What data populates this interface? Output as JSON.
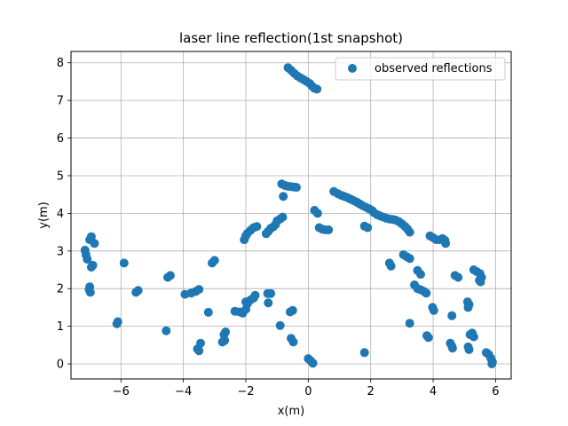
{
  "chart_data": {
    "type": "scatter",
    "title": "laser line reflection(1st snapshot)",
    "xlabel": "x(m)",
    "ylabel": "y(m)",
    "xlim": [
      -7.6,
      6.5
    ],
    "ylim": [
      -0.4,
      8.3
    ],
    "xticks": [
      -6,
      -4,
      -2,
      0,
      2,
      4,
      6
    ],
    "yticks": [
      0,
      1,
      2,
      3,
      4,
      5,
      6,
      7,
      8
    ],
    "grid": true,
    "legend_position": "top-right",
    "marker_color": "#1f77b4",
    "series": [
      {
        "name": "observed reflections",
        "points": [
          [
            -0.65,
            7.87
          ],
          [
            -0.55,
            7.8
          ],
          [
            -0.45,
            7.72
          ],
          [
            -0.35,
            7.65
          ],
          [
            -0.25,
            7.6
          ],
          [
            -0.15,
            7.55
          ],
          [
            -0.05,
            7.5
          ],
          [
            0.05,
            7.45
          ],
          [
            0.12,
            7.38
          ],
          [
            0.2,
            7.32
          ],
          [
            0.28,
            7.3
          ],
          [
            -0.85,
            4.78
          ],
          [
            -0.75,
            4.74
          ],
          [
            -0.65,
            4.72
          ],
          [
            -0.55,
            4.71
          ],
          [
            -0.45,
            4.7
          ],
          [
            -0.38,
            4.69
          ],
          [
            -0.8,
            4.45
          ],
          [
            0.82,
            4.58
          ],
          [
            0.95,
            4.52
          ],
          [
            1.05,
            4.48
          ],
          [
            1.15,
            4.45
          ],
          [
            1.25,
            4.42
          ],
          [
            1.35,
            4.38
          ],
          [
            1.45,
            4.34
          ],
          [
            1.55,
            4.3
          ],
          [
            1.65,
            4.25
          ],
          [
            1.75,
            4.2
          ],
          [
            1.85,
            4.16
          ],
          [
            1.95,
            4.12
          ],
          [
            2.05,
            4.07
          ],
          [
            2.1,
            4.02
          ],
          [
            2.2,
            3.97
          ],
          [
            2.3,
            3.93
          ],
          [
            2.4,
            3.9
          ],
          [
            2.5,
            3.87
          ],
          [
            2.6,
            3.85
          ],
          [
            2.7,
            3.84
          ],
          [
            2.8,
            3.82
          ],
          [
            2.9,
            3.78
          ],
          [
            3.0,
            3.72
          ],
          [
            3.1,
            3.65
          ],
          [
            3.18,
            3.58
          ],
          [
            3.25,
            3.5
          ],
          [
            0.2,
            4.08
          ],
          [
            0.3,
            4.0
          ],
          [
            0.35,
            3.62
          ],
          [
            0.45,
            3.58
          ],
          [
            0.55,
            3.56
          ],
          [
            0.65,
            3.56
          ],
          [
            1.8,
            3.66
          ],
          [
            1.9,
            3.62
          ],
          [
            -0.82,
            3.9
          ],
          [
            -0.9,
            3.85
          ],
          [
            -1.0,
            3.8
          ],
          [
            -1.05,
            3.7
          ],
          [
            -1.12,
            3.64
          ],
          [
            -1.2,
            3.6
          ],
          [
            -1.28,
            3.52
          ],
          [
            -1.35,
            3.46
          ],
          [
            -1.65,
            3.65
          ],
          [
            -1.75,
            3.62
          ],
          [
            -1.85,
            3.55
          ],
          [
            -1.95,
            3.47
          ],
          [
            -2.0,
            3.4
          ],
          [
            -2.05,
            3.3
          ],
          [
            -6.95,
            3.38
          ],
          [
            -7.0,
            3.3
          ],
          [
            -6.85,
            3.2
          ],
          [
            -7.15,
            3.02
          ],
          [
            -7.12,
            2.9
          ],
          [
            -7.08,
            2.78
          ],
          [
            -6.9,
            2.62
          ],
          [
            -6.95,
            2.57
          ],
          [
            -7.0,
            2.05
          ],
          [
            -7.02,
            1.98
          ],
          [
            -6.98,
            1.9
          ],
          [
            -5.9,
            2.68
          ],
          [
            -5.45,
            1.95
          ],
          [
            -5.52,
            1.9
          ],
          [
            -6.1,
            1.12
          ],
          [
            -6.13,
            1.07
          ],
          [
            -4.42,
            2.35
          ],
          [
            -4.5,
            2.3
          ],
          [
            -4.55,
            0.88
          ],
          [
            -3.95,
            1.85
          ],
          [
            -3.75,
            1.88
          ],
          [
            -3.6,
            1.93
          ],
          [
            -3.5,
            1.98
          ],
          [
            -3.0,
            2.75
          ],
          [
            -3.08,
            2.68
          ],
          [
            -3.2,
            1.37
          ],
          [
            -3.45,
            0.55
          ],
          [
            -3.55,
            0.4
          ],
          [
            -3.5,
            0.35
          ],
          [
            -2.65,
            0.85
          ],
          [
            -2.7,
            0.78
          ],
          [
            -2.68,
            0.62
          ],
          [
            -2.75,
            0.58
          ],
          [
            -2.35,
            1.4
          ],
          [
            -2.2,
            1.38
          ],
          [
            -2.1,
            1.35
          ],
          [
            -2.0,
            1.45
          ],
          [
            -1.95,
            1.6
          ],
          [
            -2.0,
            1.65
          ],
          [
            -1.85,
            1.7
          ],
          [
            -1.75,
            1.75
          ],
          [
            -1.7,
            1.82
          ],
          [
            -1.3,
            1.87
          ],
          [
            -1.2,
            1.87
          ],
          [
            -1.28,
            1.62
          ],
          [
            -0.5,
            1.42
          ],
          [
            -0.58,
            1.38
          ],
          [
            -0.9,
            1.02
          ],
          [
            -0.55,
            0.68
          ],
          [
            -0.48,
            0.58
          ],
          [
            0.0,
            0.14
          ],
          [
            0.08,
            0.08
          ],
          [
            0.15,
            0.02
          ],
          [
            1.8,
            0.3
          ],
          [
            3.05,
            2.9
          ],
          [
            3.15,
            2.85
          ],
          [
            3.25,
            2.8
          ],
          [
            3.4,
            2.1
          ],
          [
            3.5,
            2.0
          ],
          [
            3.6,
            1.97
          ],
          [
            3.7,
            1.93
          ],
          [
            3.78,
            1.88
          ],
          [
            3.5,
            2.48
          ],
          [
            3.6,
            2.38
          ],
          [
            2.6,
            2.68
          ],
          [
            2.65,
            2.6
          ],
          [
            3.25,
            1.08
          ],
          [
            3.9,
            3.4
          ],
          [
            4.0,
            3.35
          ],
          [
            4.1,
            3.3
          ],
          [
            4.2,
            3.3
          ],
          [
            4.3,
            3.33
          ],
          [
            4.38,
            3.28
          ],
          [
            4.4,
            3.2
          ],
          [
            3.98,
            1.5
          ],
          [
            4.02,
            1.42
          ],
          [
            3.8,
            0.75
          ],
          [
            3.85,
            0.7
          ],
          [
            4.7,
            2.35
          ],
          [
            4.8,
            2.3
          ],
          [
            4.6,
            1.28
          ],
          [
            4.55,
            0.55
          ],
          [
            4.6,
            0.47
          ],
          [
            4.62,
            0.42
          ],
          [
            5.1,
            1.65
          ],
          [
            5.15,
            1.58
          ],
          [
            5.12,
            1.5
          ],
          [
            5.12,
            0.45
          ],
          [
            5.15,
            0.38
          ],
          [
            5.18,
            0.78
          ],
          [
            5.25,
            0.82
          ],
          [
            5.3,
            0.72
          ],
          [
            5.3,
            2.5
          ],
          [
            5.4,
            2.45
          ],
          [
            5.5,
            2.4
          ],
          [
            5.55,
            2.3
          ],
          [
            5.48,
            2.22
          ],
          [
            5.52,
            2.18
          ],
          [
            5.7,
            0.3
          ],
          [
            5.78,
            0.25
          ],
          [
            5.85,
            0.15
          ],
          [
            5.9,
            0.05
          ],
          [
            5.88,
            0.0
          ]
        ]
      }
    ]
  }
}
